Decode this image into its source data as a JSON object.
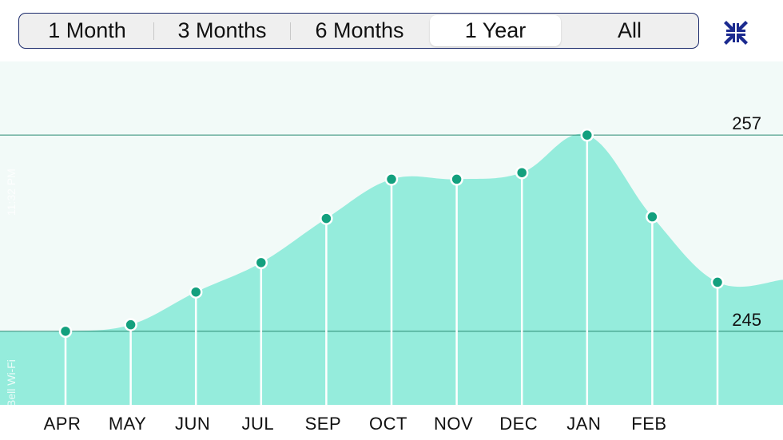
{
  "range_selector": {
    "options": [
      "1 Month",
      "3 Months",
      "6 Months",
      "1 Year",
      "All"
    ],
    "selected_index": 3
  },
  "toolbar": {
    "collapse_icon": "collapse-arrows-icon"
  },
  "status_overlay": {
    "wifi_label": "Bell Wi-Fi",
    "time": "11:32 PM"
  },
  "colors": {
    "area": "#95ecdc",
    "point": "#13a07e",
    "accent": "#1b2a6b",
    "gridline": "#2a8a73"
  },
  "chart_data": {
    "type": "area",
    "categories": [
      "APR",
      "MAY",
      "JUN",
      "JUL",
      "SEP",
      "OCT",
      "NOV",
      "DEC",
      "JAN",
      "FEB",
      ""
    ],
    "values": [
      245.0,
      245.4,
      247.4,
      249.2,
      251.9,
      254.3,
      254.3,
      254.7,
      257.0,
      252.0,
      248.0
    ],
    "y_ticks": [
      245,
      257
    ],
    "ylim": [
      240.5,
      261.5
    ],
    "gridlines": true,
    "title": "",
    "xlabel": "",
    "ylabel": ""
  }
}
